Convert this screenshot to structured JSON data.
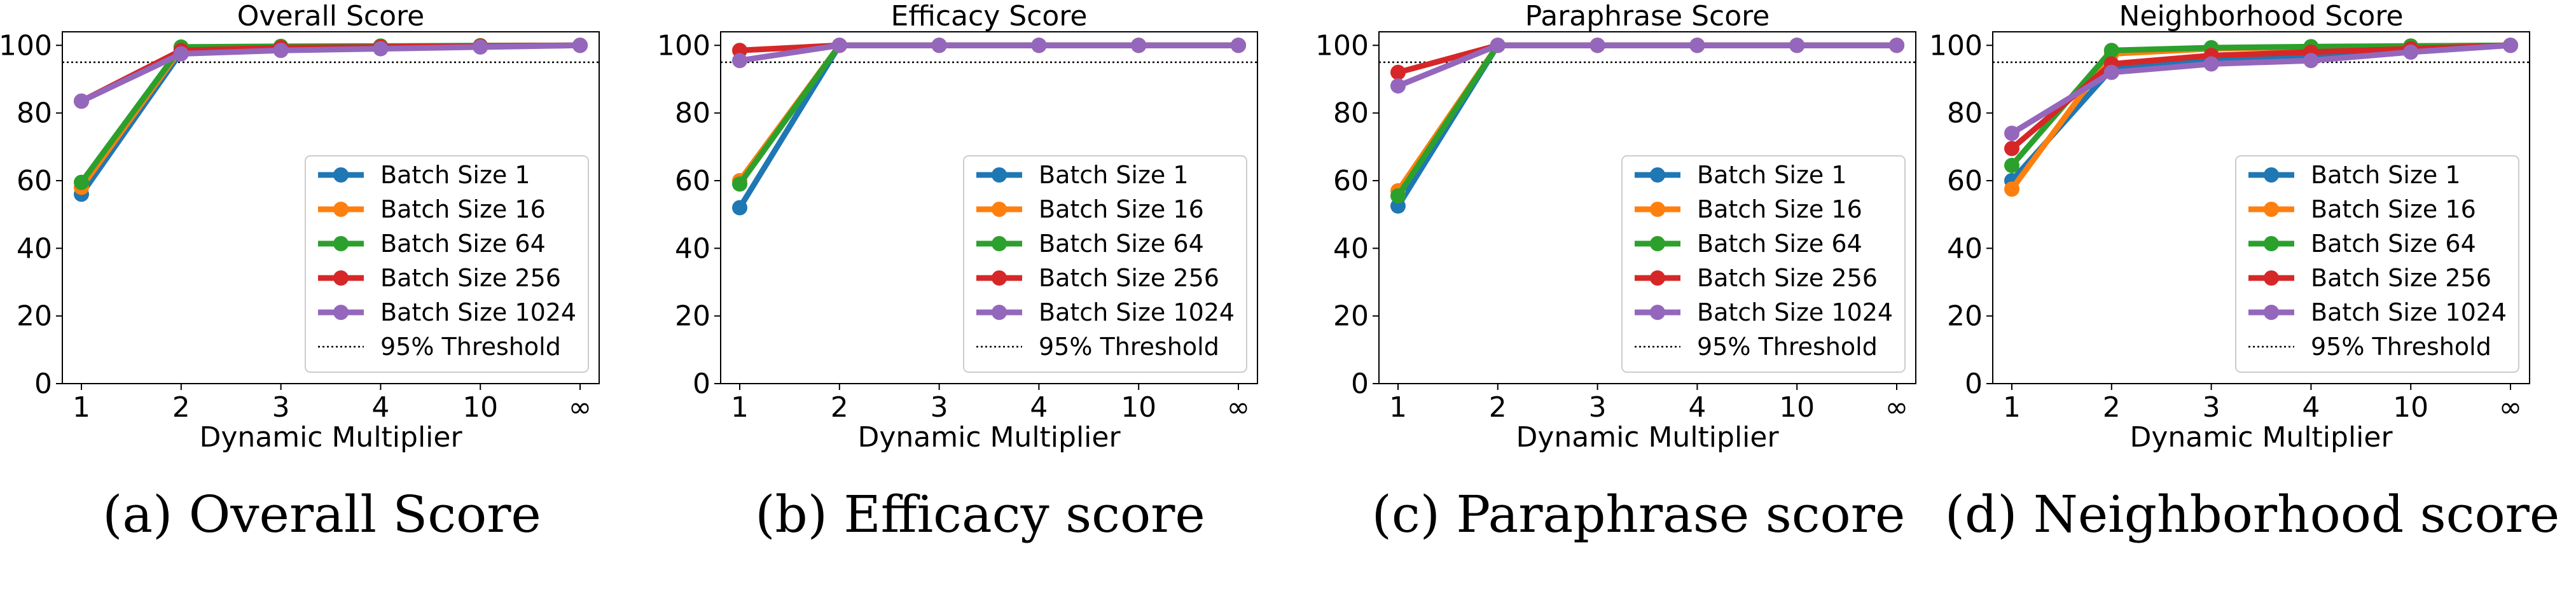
{
  "captions": [
    "(a) Overall Score",
    "(b) Efficacy score",
    "(c) Paraphrase score",
    "(d) Neighborhood score"
  ],
  "chart_data": [
    {
      "type": "line",
      "title": "Overall Score",
      "xlabel": "Dynamic Multiplier",
      "ylabel": "",
      "categories": [
        "1",
        "2",
        "3",
        "4",
        "10",
        "∞"
      ],
      "ylim": [
        0,
        104
      ],
      "yticks": [
        0,
        20,
        40,
        60,
        80,
        100
      ],
      "grid": false,
      "legend": "lower-right",
      "threshold": {
        "name": "95% Threshold",
        "value": 95
      },
      "series": [
        {
          "name": "Batch Size 1",
          "values": [
            56,
            98,
            99,
            99.5,
            99.7,
            100
          ]
        },
        {
          "name": "Batch Size 16",
          "values": [
            58,
            99,
            99.5,
            99.6,
            99.8,
            100
          ]
        },
        {
          "name": "Batch Size 64",
          "values": [
            59.5,
            99.5,
            99.7,
            99.8,
            99.9,
            100
          ]
        },
        {
          "name": "Batch Size 256",
          "values": [
            83.5,
            98.5,
            99.3,
            99.5,
            99.8,
            100
          ]
        },
        {
          "name": "Batch Size 1024",
          "values": [
            83.5,
            97.5,
            98.5,
            99,
            99.5,
            100
          ]
        }
      ]
    },
    {
      "type": "line",
      "title": "Efficacy Score",
      "xlabel": "Dynamic Multiplier",
      "ylabel": "",
      "categories": [
        "1",
        "2",
        "3",
        "4",
        "10",
        "∞"
      ],
      "ylim": [
        0,
        104
      ],
      "yticks": [
        0,
        20,
        40,
        60,
        80,
        100
      ],
      "grid": false,
      "legend": "lower-right",
      "threshold": {
        "name": "95% Threshold",
        "value": 95
      },
      "series": [
        {
          "name": "Batch Size 1",
          "values": [
            52,
            100,
            100,
            100,
            100,
            100
          ]
        },
        {
          "name": "Batch Size 16",
          "values": [
            60,
            100,
            100,
            100,
            100,
            100
          ]
        },
        {
          "name": "Batch Size 64",
          "values": [
            59,
            100,
            100,
            100,
            100,
            100
          ]
        },
        {
          "name": "Batch Size 256",
          "values": [
            98.5,
            100,
            100,
            100,
            100,
            100
          ]
        },
        {
          "name": "Batch Size 1024",
          "values": [
            95.5,
            100,
            100,
            100,
            100,
            100
          ]
        }
      ]
    },
    {
      "type": "line",
      "title": "Paraphrase Score",
      "xlabel": "Dynamic Multiplier",
      "ylabel": "",
      "categories": [
        "1",
        "2",
        "3",
        "4",
        "10",
        "∞"
      ],
      "ylim": [
        0,
        104
      ],
      "yticks": [
        0,
        20,
        40,
        60,
        80,
        100
      ],
      "grid": false,
      "legend": "lower-right",
      "threshold": {
        "name": "95% Threshold",
        "value": 95
      },
      "series": [
        {
          "name": "Batch Size 1",
          "values": [
            52.5,
            100,
            100,
            100,
            100,
            100
          ]
        },
        {
          "name": "Batch Size 16",
          "values": [
            57,
            100,
            100,
            100,
            100,
            100
          ]
        },
        {
          "name": "Batch Size 64",
          "values": [
            55.5,
            100,
            100,
            100,
            100,
            100
          ]
        },
        {
          "name": "Batch Size 256",
          "values": [
            92,
            100,
            100,
            100,
            100,
            100
          ]
        },
        {
          "name": "Batch Size 1024",
          "values": [
            88,
            100,
            100,
            100,
            100,
            100
          ]
        }
      ]
    },
    {
      "type": "line",
      "title": "Neighborhood Score",
      "xlabel": "Dynamic Multiplier",
      "ylabel": "",
      "categories": [
        "1",
        "2",
        "3",
        "4",
        "10",
        "∞"
      ],
      "ylim": [
        0,
        104
      ],
      "yticks": [
        0,
        20,
        40,
        60,
        80,
        100
      ],
      "grid": false,
      "legend": "lower-right",
      "threshold": {
        "name": "95% Threshold",
        "value": 95
      },
      "series": [
        {
          "name": "Batch Size 1",
          "values": [
            60,
            93,
            96,
            97,
            98.5,
            100
          ]
        },
        {
          "name": "Batch Size 16",
          "values": [
            57.5,
            97.5,
            99,
            99.5,
            99.8,
            100
          ]
        },
        {
          "name": "Batch Size 64",
          "values": [
            64.5,
            98.5,
            99.3,
            99.6,
            99.8,
            100
          ]
        },
        {
          "name": "Batch Size 256",
          "values": [
            69.5,
            94.5,
            97,
            98,
            99,
            100
          ]
        },
        {
          "name": "Batch Size 1024",
          "values": [
            74,
            92,
            94.5,
            95.5,
            98,
            100
          ]
        }
      ]
    }
  ],
  "colors": {
    "series": [
      "#1f77b4",
      "#ff7f0e",
      "#2ca02c",
      "#d62728",
      "#9467bd"
    ],
    "threshold": "#000000",
    "axes": "#000000",
    "legend_border": "#cccccc"
  }
}
